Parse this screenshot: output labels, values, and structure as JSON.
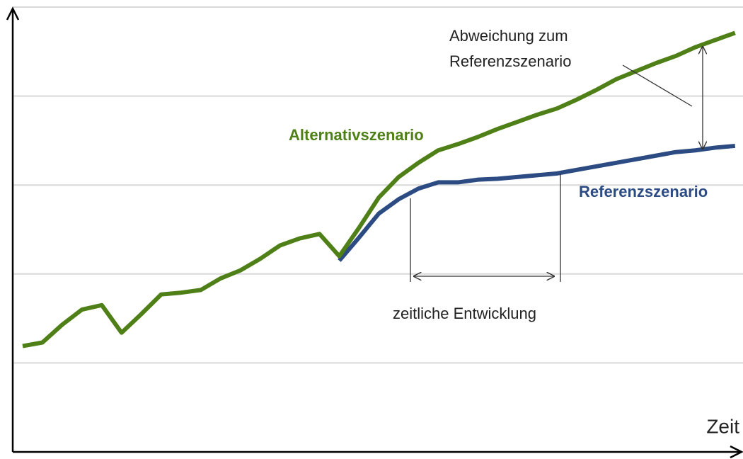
{
  "chart_data": {
    "type": "line",
    "x_label": "Zeit",
    "annotations": [
      "Abweichung zum",
      "Referenzszenario",
      "zeitliche Entwicklung"
    ],
    "x": [
      0,
      1,
      2,
      3,
      4,
      5,
      6,
      7,
      8,
      9,
      10,
      11,
      12,
      13,
      14,
      15,
      16,
      17,
      18,
      19,
      20,
      21,
      22,
      23,
      24,
      25,
      26,
      27,
      28,
      29,
      30,
      31,
      32,
      33,
      34,
      35,
      36
    ],
    "xlim": [
      -0.5,
      36.4
    ],
    "ylim": [
      0,
      5
    ],
    "yticks": [
      1,
      2,
      3,
      4,
      5
    ],
    "grid": true,
    "series": [
      {
        "name": "Alternativszenario",
        "color": "#4f7f17",
        "values": [
          1.19,
          1.23,
          1.43,
          1.6,
          1.65,
          1.34,
          1.55,
          1.77,
          1.79,
          1.82,
          1.95,
          2.04,
          2.17,
          2.32,
          2.4,
          2.45,
          2.2,
          2.52,
          2.86,
          3.09,
          3.25,
          3.39,
          3.46,
          3.54,
          3.63,
          3.71,
          3.79,
          3.86,
          3.96,
          4.07,
          4.19,
          4.28,
          4.37,
          4.45,
          4.55,
          4.63,
          4.71
        ]
      },
      {
        "name": "Referenzszenario",
        "color": "#2b4b82",
        "values": [
          null,
          null,
          null,
          null,
          null,
          null,
          null,
          null,
          null,
          null,
          null,
          null,
          null,
          null,
          null,
          null,
          2.15,
          2.41,
          2.68,
          2.84,
          2.96,
          3.03,
          3.03,
          3.06,
          3.07,
          3.09,
          3.11,
          3.13,
          3.17,
          3.21,
          3.25,
          3.29,
          3.33,
          3.37,
          3.39,
          3.42,
          3.44
        ]
      }
    ]
  }
}
